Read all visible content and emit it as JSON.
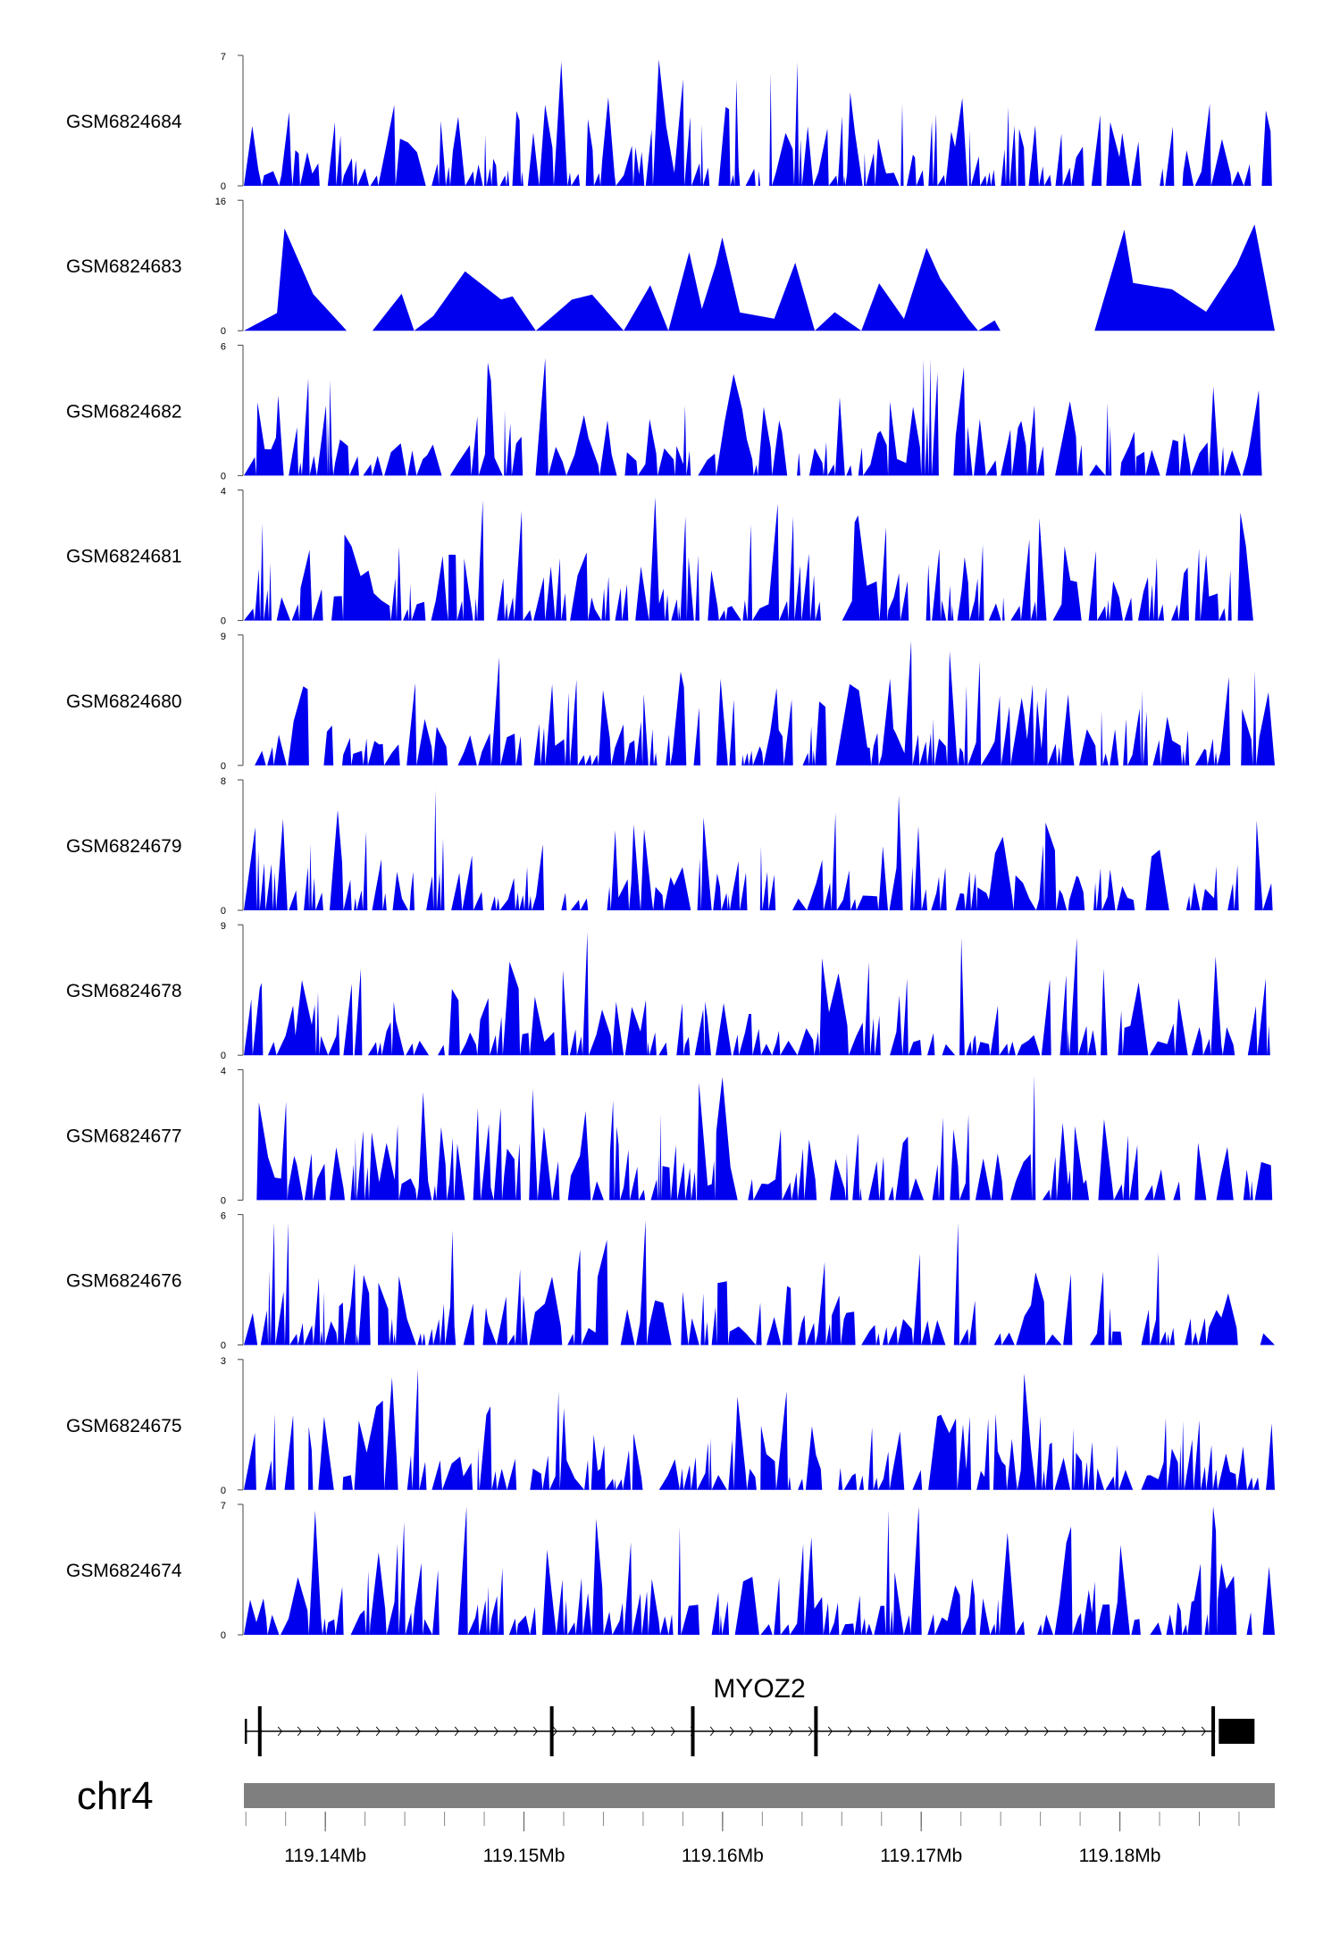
{
  "chart_data": {
    "type": "area",
    "tracks": [
      {
        "name": "GSM6824684",
        "ylim": [
          0,
          7
        ],
        "ymin_label": "0",
        "ymax_label": "7"
      },
      {
        "name": "GSM6824683",
        "ylim": [
          0,
          16
        ],
        "ymin_label": "0",
        "ymax_label": "16"
      },
      {
        "name": "GSM6824682",
        "ylim": [
          0,
          6
        ],
        "ymin_label": "0",
        "ymax_label": "6"
      },
      {
        "name": "GSM6824681",
        "ylim": [
          0,
          4
        ],
        "ymin_label": "0",
        "ymax_label": "4"
      },
      {
        "name": "GSM6824680",
        "ylim": [
          0,
          9
        ],
        "ymin_label": "0",
        "ymax_label": "9"
      },
      {
        "name": "GSM6824679",
        "ylim": [
          0,
          8
        ],
        "ymin_label": "0",
        "ymax_label": "8"
      },
      {
        "name": "GSM6824678",
        "ylim": [
          0,
          9
        ],
        "ymin_label": "0",
        "ymax_label": "9"
      },
      {
        "name": "GSM6824677",
        "ylim": [
          0,
          4
        ],
        "ymin_label": "0",
        "ymax_label": "4"
      },
      {
        "name": "GSM6824676",
        "ylim": [
          0,
          6
        ],
        "ymin_label": "0",
        "ymax_label": "6"
      },
      {
        "name": "GSM6824675",
        "ylim": [
          0,
          3
        ],
        "ymin_label": "0",
        "ymax_label": "3"
      },
      {
        "name": "GSM6824674",
        "ylim": [
          0,
          7
        ],
        "ymin_label": "0",
        "ymax_label": "7"
      }
    ],
    "fill_color": "#0000ee",
    "gene": {
      "name": "MYOZ2",
      "exons_mb": [
        119.136,
        119.1367,
        119.1514,
        119.1585,
        119.1647,
        119.1847
      ],
      "tx_start_mb": 119.136,
      "tx_end_mb": 119.1866,
      "last_exon_mb": [
        119.1848,
        119.1866
      ],
      "strand": "+"
    },
    "chromosome": "chr4",
    "x_range_mb": [
      119.1359,
      119.1878
    ],
    "x_ticks_mb": [
      119.14,
      119.15,
      119.16,
      119.17,
      119.18
    ],
    "x_tick_labels": [
      "119.14Mb",
      "119.15Mb",
      "119.16Mb",
      "119.17Mb",
      "119.18Mb"
    ],
    "minor_tick_step_mb": 0.002,
    "colors": {
      "signal": "#0000ee",
      "ideogram": "#7f7f7f",
      "gene": "#000000"
    }
  }
}
